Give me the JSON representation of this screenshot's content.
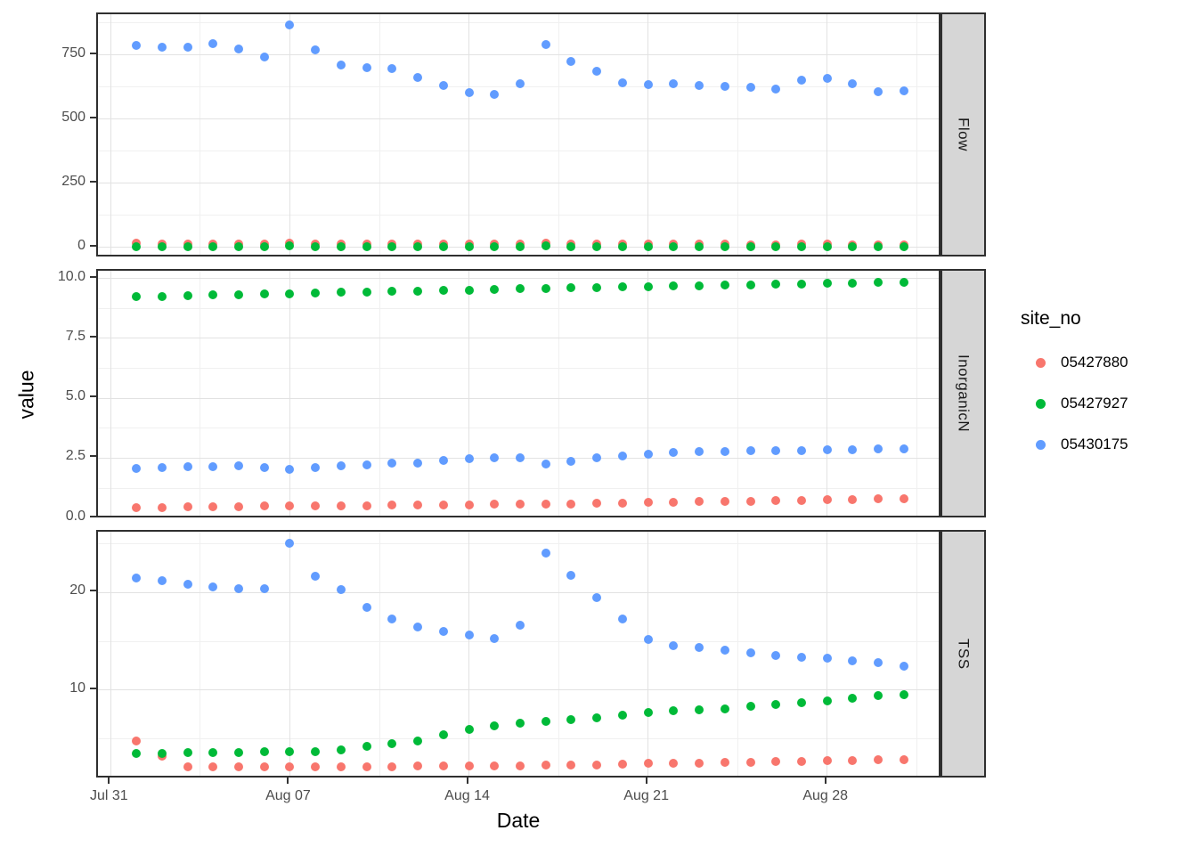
{
  "axis": {
    "x_title": "Date",
    "y_title": "value"
  },
  "legend": {
    "title": "site_no",
    "items": [
      {
        "label": "05427880",
        "color": "#F8766D"
      },
      {
        "label": "05427927",
        "color": "#00BA38"
      },
      {
        "label": "05430175",
        "color": "#619CFF"
      }
    ]
  },
  "chart_data": {
    "type": "scatter",
    "title": "",
    "xlabel": "Date",
    "ylabel": "value",
    "legend_title": "site_no",
    "legend_position": "right",
    "grid": "on",
    "facet_variable_values": [
      "Flow",
      "InorganicN",
      "TSS"
    ],
    "x_dates": [
      "Aug 01",
      "Aug 02",
      "Aug 03",
      "Aug 04",
      "Aug 05",
      "Aug 06",
      "Aug 07",
      "Aug 08",
      "Aug 09",
      "Aug 10",
      "Aug 11",
      "Aug 12",
      "Aug 13",
      "Aug 14",
      "Aug 15",
      "Aug 16",
      "Aug 17",
      "Aug 18",
      "Aug 19",
      "Aug 20",
      "Aug 21",
      "Aug 22",
      "Aug 23",
      "Aug 24",
      "Aug 25",
      "Aug 26",
      "Aug 27",
      "Aug 28",
      "Aug 29",
      "Aug 30",
      "Aug 31"
    ],
    "x_axis": {
      "xlim_days": [
        -0.5,
        32.5
      ],
      "major_tick_days": [
        0,
        7,
        14,
        21,
        28
      ],
      "major_tick_labels": [
        "Jul 31",
        "Aug 07",
        "Aug 14",
        "Aug 21",
        "Aug 28"
      ],
      "minor_tick_days": [
        3.5,
        10.5,
        17.5,
        24.5,
        31.5
      ]
    },
    "facets": [
      {
        "label": "Flow",
        "ylim": [
          -43,
          908
        ],
        "yticks": [
          0,
          250,
          500,
          750
        ],
        "ytick_labels": [
          "0",
          "250",
          "500",
          "750"
        ],
        "yminor": [
          125,
          375,
          625,
          875
        ],
        "series": [
          {
            "site_no": "05427880",
            "values": [
              15,
              14,
              14,
              14,
              13,
              13,
              17,
              14,
              13,
              12,
              12,
              12,
              11,
              11,
              11,
              12,
              15,
              13,
              12,
              11,
              11,
              11,
              11,
              11,
              10,
              10,
              11,
              11,
              10,
              10,
              10
            ]
          },
          {
            "site_no": "05427927",
            "values": [
              3,
              3,
              3,
              3,
              3,
              3,
              4,
              3,
              3,
              2,
              2,
              2,
              2,
              2,
              2,
              3,
              4,
              3,
              3,
              2,
              2,
              2,
              2,
              2,
              2,
              2,
              2,
              2,
              2,
              2,
              2
            ]
          },
          {
            "site_no": "05430175",
            "values": [
              785,
              778,
              780,
              793,
              772,
              743,
              868,
              770,
              710,
              700,
              698,
              660,
              632,
              604,
              596,
              636,
              790,
              725,
              685,
              640,
              635,
              638,
              632,
              628,
              622,
              618,
              650,
              658,
              638,
              605,
              610
            ]
          }
        ]
      },
      {
        "label": "InorganicN",
        "ylim": [
          -0.05,
          10.32
        ],
        "yticks": [
          0.0,
          2.5,
          5.0,
          7.5,
          10.0
        ],
        "ytick_labels": [
          "0.0",
          "2.5",
          "5.0",
          "7.5",
          "10.0"
        ],
        "yminor": [
          1.25,
          3.75,
          6.25,
          8.75
        ],
        "series": [
          {
            "site_no": "05427880",
            "values": [
              0.42,
              0.44,
              0.46,
              0.47,
              0.48,
              0.49,
              0.5,
              0.51,
              0.52,
              0.52,
              0.53,
              0.54,
              0.55,
              0.56,
              0.57,
              0.58,
              0.59,
              0.6,
              0.62,
              0.63,
              0.65,
              0.67,
              0.68,
              0.7,
              0.71,
              0.73,
              0.74,
              0.76,
              0.77,
              0.79,
              0.8
            ]
          },
          {
            "site_no": "05427927",
            "values": [
              9.25,
              9.26,
              9.28,
              9.3,
              9.32,
              9.35,
              9.37,
              9.39,
              9.41,
              9.43,
              9.45,
              9.47,
              9.5,
              9.52,
              9.54,
              9.56,
              9.58,
              9.6,
              9.62,
              9.64,
              9.66,
              9.68,
              9.7,
              9.72,
              9.74,
              9.76,
              9.78,
              9.8,
              9.81,
              9.83,
              9.85
            ]
          },
          {
            "site_no": "05430175",
            "values": [
              2.08,
              2.12,
              2.14,
              2.15,
              2.18,
              2.12,
              2.04,
              2.12,
              2.18,
              2.23,
              2.28,
              2.31,
              2.4,
              2.48,
              2.5,
              2.52,
              2.24,
              2.37,
              2.5,
              2.6,
              2.68,
              2.73,
              2.76,
              2.78,
              2.8,
              2.8,
              2.82,
              2.84,
              2.85,
              2.87,
              2.9
            ]
          }
        ]
      },
      {
        "label": "TSS",
        "ylim": [
          0.85,
          26.26
        ],
        "yticks": [
          10,
          20
        ],
        "ytick_labels": [
          "10",
          "20"
        ],
        "yminor": [
          5,
          15,
          25
        ],
        "series": [
          {
            "site_no": "05427880",
            "values": [
              4.8,
              3.2,
              2.1,
              2.1,
              2.1,
              2.1,
              2.1,
              2.1,
              2.1,
              2.15,
              2.15,
              2.2,
              2.2,
              2.2,
              2.2,
              2.25,
              2.3,
              2.3,
              2.35,
              2.4,
              2.45,
              2.5,
              2.5,
              2.55,
              2.6,
              2.65,
              2.7,
              2.75,
              2.8,
              2.85,
              2.9
            ]
          },
          {
            "site_no": "05427927",
            "values": [
              3.5,
              3.5,
              3.55,
              3.6,
              3.6,
              3.65,
              3.65,
              3.7,
              3.9,
              4.2,
              4.5,
              4.8,
              5.4,
              6.0,
              6.3,
              6.6,
              6.8,
              7.0,
              7.2,
              7.4,
              7.7,
              7.9,
              8.0,
              8.1,
              8.3,
              8.5,
              8.7,
              8.9,
              9.2,
              9.4,
              9.5
            ]
          },
          {
            "site_no": "05430175",
            "values": [
              21.5,
              21.2,
              20.9,
              20.6,
              20.4,
              20.4,
              25.1,
              21.7,
              20.3,
              18.5,
              17.3,
              16.5,
              16.0,
              15.7,
              15.3,
              16.7,
              24.1,
              21.8,
              19.5,
              17.3,
              15.2,
              14.6,
              14.4,
              14.1,
              13.8,
              13.6,
              13.4,
              13.3,
              13.0,
              12.8,
              12.5
            ]
          }
        ]
      }
    ]
  }
}
